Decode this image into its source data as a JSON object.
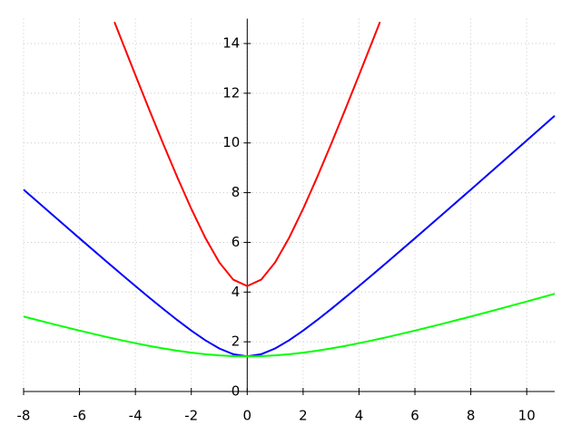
{
  "chart_data": {
    "type": "line",
    "x": [
      -8,
      -7,
      -6,
      -5,
      -4.75,
      -4.5,
      -4,
      -3.5,
      -3,
      -2.5,
      -2,
      -1.5,
      -1,
      -0.5,
      0,
      0.5,
      1,
      1.5,
      2,
      2.5,
      3,
      3.5,
      4,
      4.5,
      4.75,
      5,
      6,
      7,
      8,
      9,
      10,
      11
    ],
    "series": [
      {
        "color": "#ff0000",
        "values": [
          null,
          null,
          null,
          null,
          14.868,
          14.151,
          12.728,
          11.325,
          9.95,
          8.617,
          7.348,
          6.185,
          5.196,
          4.5,
          4.243,
          4.5,
          5.196,
          6.185,
          7.348,
          8.617,
          9.95,
          11.325,
          12.728,
          14.151,
          14.868,
          null,
          null,
          null,
          null,
          null,
          null,
          null
        ]
      },
      {
        "color": "#0000ff",
        "values": [
          8.124,
          7.141,
          6.164,
          5.196,
          4.956,
          4.717,
          4.243,
          3.775,
          3.317,
          2.872,
          2.449,
          2.062,
          1.732,
          1.5,
          1.414,
          1.5,
          1.732,
          2.062,
          2.449,
          2.872,
          3.317,
          3.775,
          4.243,
          4.717,
          4.956,
          5.196,
          6.164,
          7.141,
          8.124,
          9.11,
          10.1,
          11.091
        ]
      },
      {
        "color": "#00ff00",
        "values": [
          3.018,
          2.728,
          2.449,
          2.186,
          2.123,
          2.062,
          1.944,
          1.833,
          1.732,
          1.641,
          1.563,
          1.5,
          1.453,
          1.424,
          1.414,
          1.424,
          1.453,
          1.5,
          1.563,
          1.641,
          1.732,
          1.833,
          1.944,
          2.062,
          2.123,
          2.186,
          2.449,
          2.728,
          3.018,
          3.317,
          3.621,
          3.93
        ]
      }
    ],
    "xlim": [
      -8,
      11
    ],
    "ylim": [
      0,
      15
    ],
    "xticks": [
      -8,
      -6,
      -4,
      -2,
      0,
      2,
      4,
      6,
      8,
      10
    ],
    "yticks": [
      0,
      2,
      4,
      6,
      8,
      10,
      12,
      14
    ],
    "grid": true
  }
}
